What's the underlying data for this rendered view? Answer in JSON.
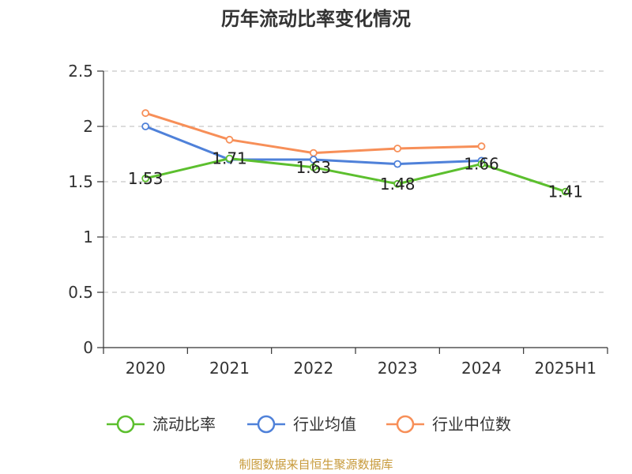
{
  "chart_data": {
    "type": "line",
    "title": "历年流动比率变化情况",
    "categories": [
      "2020",
      "2021",
      "2022",
      "2023",
      "2024",
      "2025H1"
    ],
    "ylim": [
      0,
      2.5
    ],
    "yticks": [
      "0",
      "0.5",
      "1",
      "1.5",
      "2",
      "2.5"
    ],
    "grid": true,
    "legend_position": "bottom",
    "series": [
      {
        "name": "流动比率",
        "color": "#5cbf2e",
        "show_labels": true,
        "labels": [
          "1.53",
          "1.71",
          "1.63",
          "1.48",
          "1.66",
          "1.41"
        ],
        "values": [
          1.53,
          1.71,
          1.63,
          1.48,
          1.66,
          1.41
        ]
      },
      {
        "name": "行业均值",
        "color": "#4f81d9",
        "show_labels": false,
        "values": [
          2.0,
          1.7,
          1.7,
          1.66,
          1.69,
          null
        ]
      },
      {
        "name": "行业中位数",
        "color": "#f78f58",
        "show_labels": false,
        "values": [
          2.12,
          1.88,
          1.76,
          1.8,
          1.82,
          null
        ]
      }
    ],
    "source": "制图数据来自恒生聚源数据库",
    "source_color": "#c79a3a"
  }
}
